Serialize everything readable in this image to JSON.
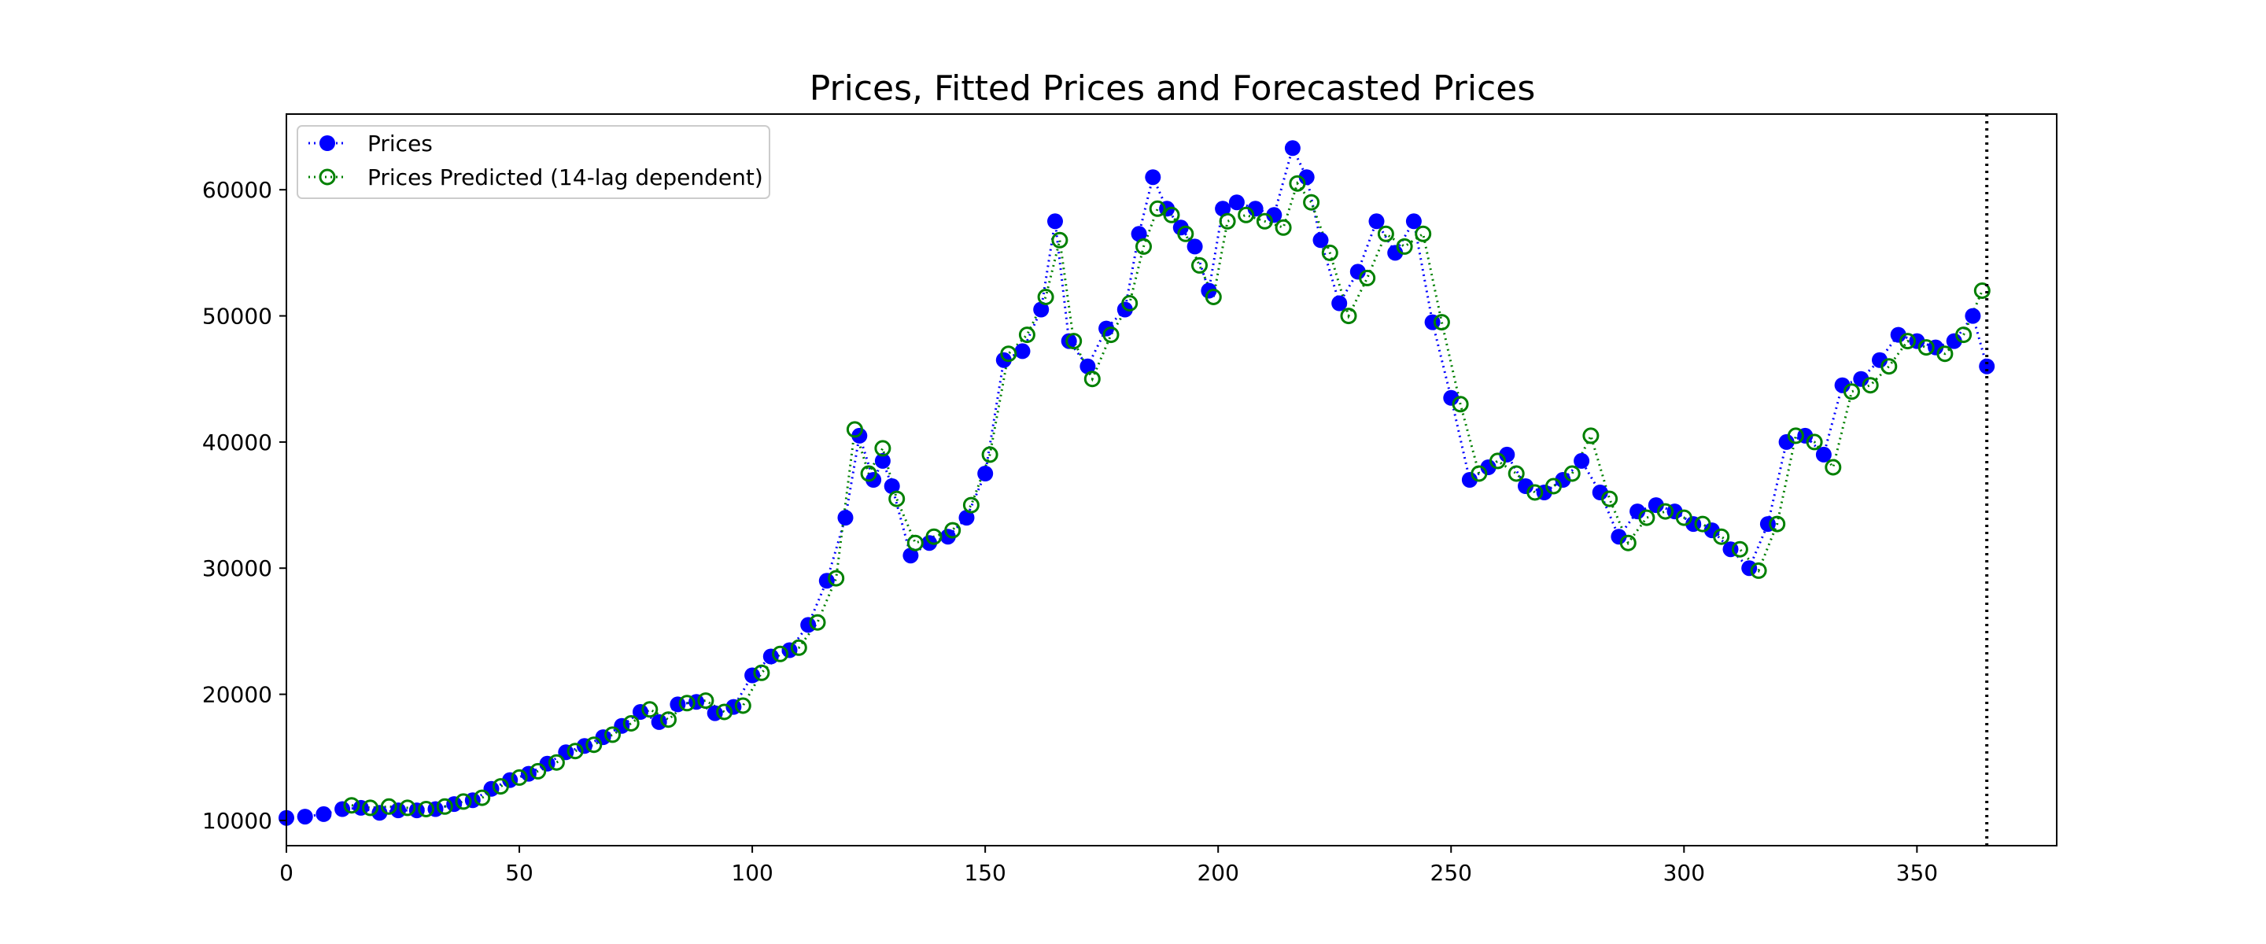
{
  "chart_data": {
    "type": "line",
    "title": "Prices, Fitted Prices and Forecasted Prices",
    "xlabel": "",
    "ylabel": "",
    "xlim": [
      0,
      380
    ],
    "ylim": [
      8000,
      66000
    ],
    "x_ticks": [
      0,
      50,
      100,
      150,
      200,
      250,
      300,
      350
    ],
    "y_ticks": [
      10000,
      20000,
      30000,
      40000,
      50000,
      60000
    ],
    "grid": false,
    "legend_position": "top-left",
    "forecast_marker_x": 365,
    "series": [
      {
        "name": "Prices",
        "color": "#0000ff",
        "marker": "filled-circle",
        "line_style": "dotted",
        "x": [
          0,
          4,
          8,
          12,
          16,
          20,
          24,
          28,
          32,
          36,
          40,
          44,
          48,
          52,
          56,
          60,
          64,
          68,
          72,
          76,
          80,
          84,
          88,
          92,
          96,
          100,
          104,
          108,
          112,
          116,
          120,
          123,
          126,
          128,
          130,
          134,
          138,
          142,
          146,
          150,
          154,
          158,
          162,
          165,
          168,
          172,
          176,
          180,
          183,
          186,
          189,
          192,
          195,
          198,
          201,
          204,
          208,
          212,
          216,
          219,
          222,
          226,
          230,
          234,
          238,
          242,
          246,
          250,
          254,
          258,
          262,
          266,
          270,
          274,
          278,
          282,
          286,
          290,
          294,
          298,
          302,
          306,
          310,
          314,
          318,
          322,
          326,
          330,
          334,
          338,
          342,
          346,
          350,
          354,
          358,
          362,
          365
        ],
        "values": [
          10200,
          10300,
          10500,
          10900,
          11000,
          10600,
          10800,
          10800,
          10900,
          11300,
          11600,
          12500,
          13200,
          13700,
          14500,
          15400,
          15900,
          16600,
          17500,
          18600,
          17800,
          19200,
          19400,
          18500,
          19000,
          21500,
          23000,
          23500,
          25500,
          29000,
          34000,
          40500,
          37000,
          38500,
          36500,
          31000,
          32000,
          32500,
          34000,
          37500,
          46500,
          47200,
          50500,
          57500,
          48000,
          46000,
          49000,
          50500,
          56500,
          61000,
          58500,
          57000,
          55500,
          52000,
          58500,
          59000,
          58500,
          58000,
          63300,
          61000,
          56000,
          51000,
          53500,
          57500,
          55000,
          57500,
          49500,
          43500,
          37000,
          38000,
          39000,
          36500,
          36000,
          37000,
          38500,
          36000,
          32500,
          34500,
          35000,
          34500,
          33500,
          33000,
          31500,
          30000,
          33500,
          40000,
          40500,
          39000,
          44500,
          45000,
          46500,
          48500,
          48000,
          47500,
          48000,
          50000,
          46000
        ]
      },
      {
        "name": "Prices Predicted (14-lag dependent)",
        "color": "#008000",
        "marker": "hollow-circle",
        "line_style": "dotted",
        "x": [
          14,
          18,
          22,
          26,
          30,
          34,
          38,
          42,
          46,
          50,
          54,
          58,
          62,
          66,
          70,
          74,
          78,
          82,
          86,
          90,
          94,
          98,
          102,
          106,
          110,
          114,
          118,
          122,
          125,
          128,
          131,
          135,
          139,
          143,
          147,
          151,
          155,
          159,
          163,
          166,
          169,
          173,
          177,
          181,
          184,
          187,
          190,
          193,
          196,
          199,
          202,
          206,
          210,
          214,
          217,
          220,
          224,
          228,
          232,
          236,
          240,
          244,
          248,
          252,
          256,
          260,
          264,
          268,
          272,
          276,
          280,
          284,
          288,
          292,
          296,
          300,
          304,
          308,
          312,
          316,
          320,
          324,
          328,
          332,
          336,
          340,
          344,
          348,
          352,
          356,
          360,
          364
        ],
        "values": [
          11200,
          11000,
          11100,
          11000,
          10900,
          11100,
          11500,
          11800,
          12700,
          13400,
          13900,
          14600,
          15500,
          16000,
          16800,
          17700,
          18800,
          18000,
          19300,
          19500,
          18600,
          19100,
          21700,
          23200,
          23700,
          25700,
          29200,
          41000,
          37500,
          39500,
          35500,
          32000,
          32500,
          33000,
          35000,
          39000,
          47000,
          48500,
          51500,
          56000,
          48000,
          45000,
          48500,
          51000,
          55500,
          58500,
          58000,
          56500,
          54000,
          51500,
          57500,
          58000,
          57500,
          57000,
          60500,
          59000,
          55000,
          50000,
          53000,
          56500,
          55500,
          56500,
          49500,
          43000,
          37500,
          38500,
          37500,
          36000,
          36500,
          37500,
          40500,
          35500,
          32000,
          34000,
          34500,
          34000,
          33500,
          32500,
          31500,
          29800,
          33500,
          40500,
          40000,
          38000,
          44000,
          44500,
          46000,
          48000,
          47500,
          47000,
          48500,
          52000
        ]
      }
    ]
  }
}
